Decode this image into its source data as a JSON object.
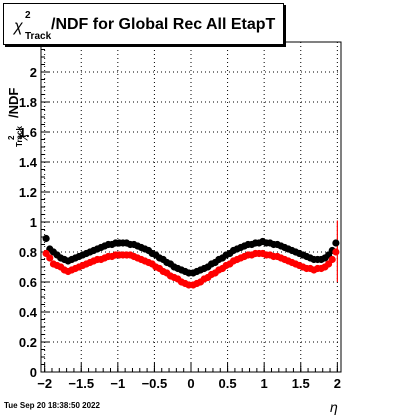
{
  "title": {
    "symbol": "χ",
    "superscript": "2",
    "subscript": "Track",
    "rest": "/NDF for Global Rec All EtapT"
  },
  "ylabel": {
    "main": "/NDF",
    "sub": "Track",
    "sup": "2",
    "symbol": "χ"
  },
  "xlabel": "η",
  "timestamp": "Tue Sep 20 18:38:50 2022",
  "chart_data": {
    "type": "scatter",
    "xlim": [
      -2.05,
      2.05
    ],
    "ylim": [
      0,
      2.2
    ],
    "grid": true,
    "x_ticks": [
      -2,
      -1.5,
      -1,
      -0.5,
      0,
      0.5,
      1,
      1.5,
      2
    ],
    "x_tick_labels": [
      "−2",
      "−1.5",
      "−1",
      "−0.5",
      "0",
      "0.5",
      "1",
      "1.5",
      "2"
    ],
    "y_ticks": [
      0,
      0.2,
      0.4,
      0.6,
      0.8,
      1,
      1.2,
      1.4,
      1.6,
      1.8,
      2
    ],
    "y_tick_labels": [
      "0",
      "0.2",
      "0.4",
      "0.6",
      "0.8",
      "1",
      "1.2",
      "1.4",
      "1.6",
      "1.8",
      "2"
    ],
    "series": [
      {
        "color": "#000000",
        "x": [
          -1.98,
          -1.93,
          -1.88,
          -1.83,
          -1.78,
          -1.73,
          -1.68,
          -1.63,
          -1.58,
          -1.53,
          -1.48,
          -1.43,
          -1.38,
          -1.33,
          -1.28,
          -1.23,
          -1.18,
          -1.13,
          -1.08,
          -1.03,
          -0.98,
          -0.93,
          -0.88,
          -0.83,
          -0.78,
          -0.73,
          -0.68,
          -0.63,
          -0.58,
          -0.53,
          -0.48,
          -0.43,
          -0.38,
          -0.33,
          -0.28,
          -0.23,
          -0.18,
          -0.13,
          -0.08,
          -0.03,
          0.03,
          0.08,
          0.13,
          0.18,
          0.23,
          0.28,
          0.33,
          0.38,
          0.43,
          0.48,
          0.53,
          0.58,
          0.63,
          0.68,
          0.73,
          0.78,
          0.83,
          0.88,
          0.93,
          0.98,
          1.03,
          1.08,
          1.13,
          1.18,
          1.23,
          1.28,
          1.33,
          1.38,
          1.43,
          1.48,
          1.53,
          1.58,
          1.63,
          1.68,
          1.73,
          1.78,
          1.83,
          1.88,
          1.93,
          1.98
        ],
        "y": [
          0.89,
          0.82,
          0.8,
          0.78,
          0.76,
          0.75,
          0.74,
          0.75,
          0.76,
          0.77,
          0.78,
          0.79,
          0.8,
          0.81,
          0.82,
          0.83,
          0.84,
          0.85,
          0.85,
          0.86,
          0.86,
          0.86,
          0.86,
          0.85,
          0.85,
          0.84,
          0.83,
          0.82,
          0.81,
          0.79,
          0.78,
          0.76,
          0.75,
          0.73,
          0.72,
          0.7,
          0.69,
          0.68,
          0.67,
          0.66,
          0.66,
          0.67,
          0.68,
          0.69,
          0.7,
          0.72,
          0.73,
          0.75,
          0.76,
          0.78,
          0.79,
          0.81,
          0.82,
          0.83,
          0.84,
          0.85,
          0.85,
          0.86,
          0.86,
          0.87,
          0.86,
          0.86,
          0.85,
          0.85,
          0.84,
          0.83,
          0.82,
          0.81,
          0.8,
          0.79,
          0.78,
          0.77,
          0.76,
          0.75,
          0.75,
          0.75,
          0.76,
          0.78,
          0.81,
          0.86
        ]
      },
      {
        "color": "#ff0000",
        "x": [
          -1.98,
          -1.93,
          -1.88,
          -1.83,
          -1.78,
          -1.73,
          -1.68,
          -1.63,
          -1.58,
          -1.53,
          -1.48,
          -1.43,
          -1.38,
          -1.33,
          -1.28,
          -1.23,
          -1.18,
          -1.13,
          -1.08,
          -1.03,
          -0.98,
          -0.93,
          -0.88,
          -0.83,
          -0.78,
          -0.73,
          -0.68,
          -0.63,
          -0.58,
          -0.53,
          -0.48,
          -0.43,
          -0.38,
          -0.33,
          -0.28,
          -0.23,
          -0.18,
          -0.13,
          -0.08,
          -0.03,
          0.03,
          0.08,
          0.13,
          0.18,
          0.23,
          0.28,
          0.33,
          0.38,
          0.43,
          0.48,
          0.53,
          0.58,
          0.63,
          0.68,
          0.73,
          0.78,
          0.83,
          0.88,
          0.93,
          0.98,
          1.03,
          1.08,
          1.13,
          1.18,
          1.23,
          1.28,
          1.33,
          1.38,
          1.43,
          1.48,
          1.53,
          1.58,
          1.63,
          1.68,
          1.73,
          1.78,
          1.83,
          1.88,
          1.93,
          1.98
        ],
        "y": [
          0.79,
          0.76,
          0.72,
          0.71,
          0.7,
          0.68,
          0.67,
          0.68,
          0.69,
          0.7,
          0.71,
          0.72,
          0.73,
          0.74,
          0.75,
          0.75,
          0.76,
          0.77,
          0.77,
          0.78,
          0.78,
          0.78,
          0.78,
          0.78,
          0.77,
          0.76,
          0.75,
          0.74,
          0.73,
          0.72,
          0.7,
          0.69,
          0.67,
          0.66,
          0.64,
          0.63,
          0.62,
          0.6,
          0.59,
          0.58,
          0.58,
          0.59,
          0.6,
          0.62,
          0.63,
          0.65,
          0.66,
          0.68,
          0.69,
          0.71,
          0.72,
          0.74,
          0.75,
          0.76,
          0.77,
          0.78,
          0.78,
          0.79,
          0.79,
          0.79,
          0.78,
          0.78,
          0.77,
          0.77,
          0.76,
          0.75,
          0.74,
          0.73,
          0.72,
          0.71,
          0.7,
          0.69,
          0.69,
          0.68,
          0.69,
          0.69,
          0.7,
          0.72,
          0.75,
          0.8
        ]
      }
    ],
    "error_bar": {
      "x": 2.0,
      "y": 0.8,
      "low": 0.6,
      "high": 1.01,
      "color": "#ff0000"
    }
  }
}
